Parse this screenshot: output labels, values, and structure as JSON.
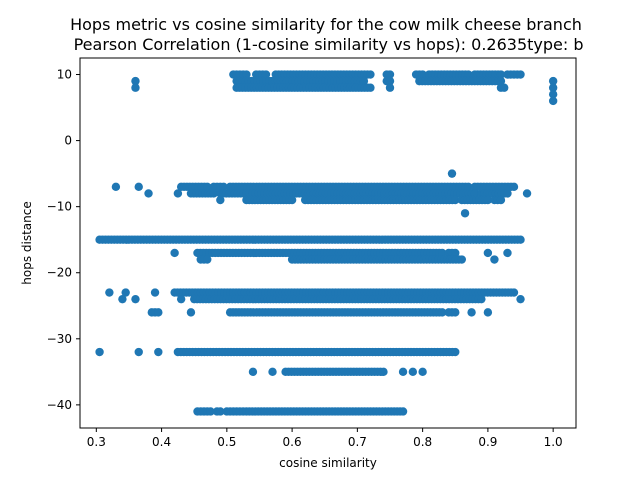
{
  "chart_data": {
    "type": "scatter",
    "title": "Hops metric vs cosine similarity for the cow milk cheese branch",
    "subtitle": " Pearson Correlation (1-cosine similarity vs hops): 0.2635type: b",
    "xlabel": "cosine similarity",
    "ylabel": "hops distance",
    "xlim": [
      0.275,
      1.035
    ],
    "ylim": [
      -43.5,
      12.5
    ],
    "xticks": [
      0.3,
      0.4,
      0.5,
      0.6,
      0.7,
      0.8,
      0.9,
      1.0
    ],
    "xtick_labels": [
      "0.3",
      "0.4",
      "0.5",
      "0.6",
      "0.7",
      "0.8",
      "0.9",
      "1.0"
    ],
    "yticks": [
      10,
      0,
      -10,
      -20,
      -30,
      -40
    ],
    "ytick_labels": [
      "10",
      "0",
      "−10",
      "−20",
      "−30",
      "−40"
    ],
    "grid": false,
    "marker_color": "#1f77b4",
    "series": [
      {
        "bands": [
          {
            "y": 10,
            "segments": [
              [
                0.51,
                0.53
              ],
              [
                0.545,
                0.56
              ],
              [
                0.575,
                0.72
              ],
              [
                0.745,
                0.75
              ],
              [
                0.79,
                0.8
              ],
              [
                0.81,
                0.87
              ],
              [
                0.88,
                0.92
              ],
              [
                0.93,
                0.95
              ]
            ]
          },
          {
            "y": 9,
            "segments": [
              [
                0.36,
                0.36
              ],
              [
                0.515,
                0.71
              ],
              [
                0.745,
                0.75
              ],
              [
                0.795,
                0.92
              ],
              [
                1.0,
                1.0
              ]
            ]
          },
          {
            "y": 8,
            "segments": [
              [
                0.36,
                0.36
              ],
              [
                0.515,
                0.72
              ],
              [
                0.75,
                0.75
              ],
              [
                0.92,
                0.925
              ],
              [
                1.0,
                1.0
              ]
            ]
          },
          {
            "y": 7,
            "segments": [
              [
                1.0,
                1.0
              ]
            ]
          },
          {
            "y": 6,
            "segments": [
              [
                1.0,
                1.0
              ]
            ]
          },
          {
            "y": -5,
            "segments": [
              [
                0.845,
                0.845
              ]
            ]
          },
          {
            "y": -7,
            "segments": [
              [
                0.33,
                0.33
              ],
              [
                0.365,
                0.365
              ],
              [
                0.43,
                0.47
              ],
              [
                0.48,
                0.495
              ],
              [
                0.505,
                0.87
              ],
              [
                0.88,
                0.94
              ]
            ]
          },
          {
            "y": -8,
            "segments": [
              [
                0.38,
                0.38
              ],
              [
                0.425,
                0.425
              ],
              [
                0.445,
                0.48
              ],
              [
                0.49,
                0.88
              ],
              [
                0.89,
                0.93
              ],
              [
                0.96,
                0.96
              ]
            ]
          },
          {
            "y": -9,
            "segments": [
              [
                0.49,
                0.49
              ],
              [
                0.53,
                0.6
              ],
              [
                0.62,
                0.85
              ],
              [
                0.86,
                0.9
              ],
              [
                0.91,
                0.92
              ]
            ]
          },
          {
            "y": -11,
            "segments": [
              [
                0.865,
                0.865
              ]
            ]
          },
          {
            "y": -15,
            "segments": [
              [
                0.305,
                0.95
              ]
            ]
          },
          {
            "y": -17,
            "segments": [
              [
                0.42,
                0.42
              ],
              [
                0.455,
                0.83
              ],
              [
                0.84,
                0.85
              ],
              [
                0.9,
                0.9
              ],
              [
                0.93,
                0.93
              ]
            ]
          },
          {
            "y": -18,
            "segments": [
              [
                0.46,
                0.47
              ],
              [
                0.6,
                0.86
              ],
              [
                0.91,
                0.91
              ]
            ]
          },
          {
            "y": -23,
            "segments": [
              [
                0.32,
                0.32
              ],
              [
                0.345,
                0.345
              ],
              [
                0.39,
                0.39
              ],
              [
                0.42,
                0.94
              ]
            ]
          },
          {
            "y": -24,
            "segments": [
              [
                0.34,
                0.34
              ],
              [
                0.36,
                0.36
              ],
              [
                0.43,
                0.43
              ],
              [
                0.45,
                0.89
              ],
              [
                0.95,
                0.95
              ]
            ]
          },
          {
            "y": -26,
            "segments": [
              [
                0.385,
                0.395
              ],
              [
                0.445,
                0.445
              ],
              [
                0.505,
                0.83
              ],
              [
                0.84,
                0.85
              ],
              [
                0.875,
                0.875
              ],
              [
                0.9,
                0.9
              ]
            ]
          },
          {
            "y": -32,
            "segments": [
              [
                0.305,
                0.305
              ],
              [
                0.365,
                0.365
              ],
              [
                0.395,
                0.395
              ],
              [
                0.425,
                0.85
              ]
            ]
          },
          {
            "y": -35,
            "segments": [
              [
                0.54,
                0.54
              ],
              [
                0.57,
                0.57
              ],
              [
                0.59,
                0.74
              ],
              [
                0.77,
                0.77
              ],
              [
                0.785,
                0.785
              ],
              [
                0.8,
                0.8
              ]
            ]
          },
          {
            "y": -41,
            "segments": [
              [
                0.455,
                0.475
              ],
              [
                0.485,
                0.49
              ],
              [
                0.5,
                0.515
              ],
              [
                0.52,
                0.525
              ],
              [
                0.53,
                0.77
              ]
            ]
          }
        ]
      }
    ]
  }
}
